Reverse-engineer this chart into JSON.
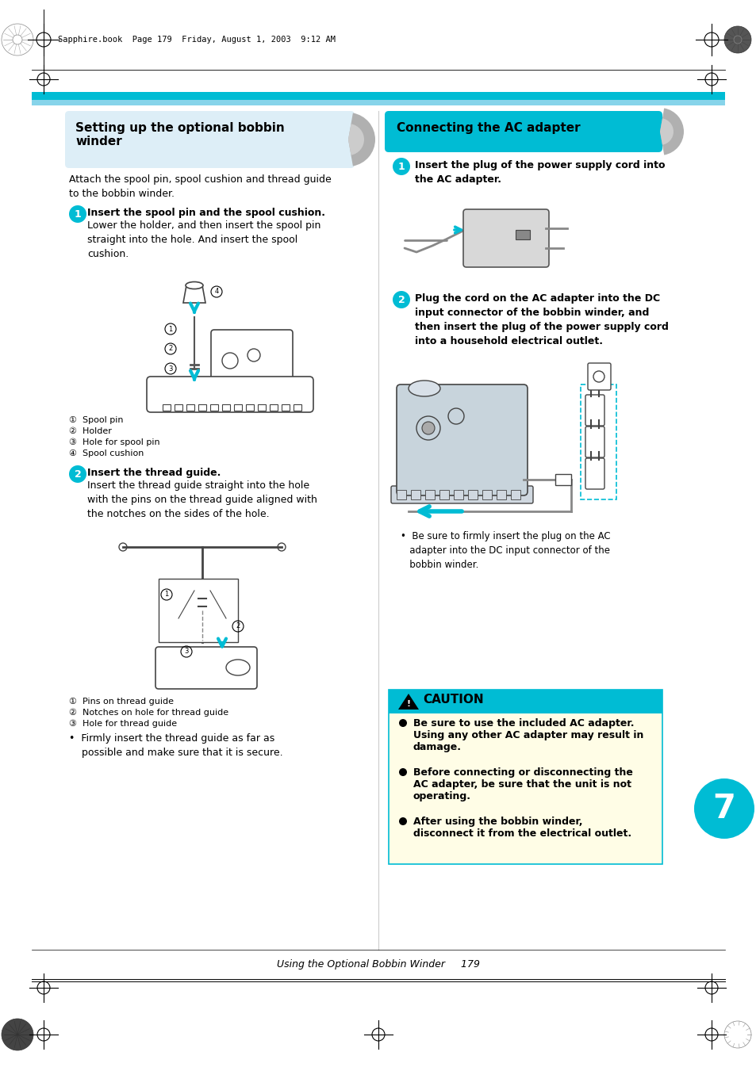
{
  "page_bg": "#ffffff",
  "cyan": "#00bcd4",
  "light_blue_box": "#ddeef7",
  "gray_swoosh": "#b8b8b8",
  "header_text": "Sapphire.book  Page 179  Friday, August 1, 2003  9:12 AM",
  "left_title_line1": "Setting up the optional bobbin",
  "left_title_line2": "winder",
  "right_title": "Connecting the AC adapter",
  "left_intro": "Attach the spool pin, spool cushion and thread guide\nto the bobbin winder.",
  "step1L_title": "Insert the spool pin and the spool cushion.",
  "step1L_body": "Lower the holder, and then insert the spool pin\nstraight into the hole. And insert the spool\ncushion.",
  "step1L_labels": [
    "①  Spool pin",
    "②  Holder",
    "③  Hole for spool pin",
    "④  Spool cushion"
  ],
  "step2L_title": "Insert the thread guide.",
  "step2L_body": "Insert the thread guide straight into the hole\nwith the pins on the thread guide aligned with\nthe notches on the sides of the hole.",
  "step2L_labels": [
    "①  Pins on thread guide",
    "②  Notches on hole for thread guide",
    "③  Hole for thread guide"
  ],
  "bullet_left": "•  Firmly insert the thread guide as far as\n    possible and make sure that it is secure.",
  "step1R_title": "Insert the plug of the power supply cord into\nthe AC adapter.",
  "step2R_title": "Plug the cord on the AC adapter into the DC\ninput connector of the bobbin winder, and\nthen insert the plug of the power supply cord\ninto a household electrical outlet.",
  "bullet_right": "•  Be sure to firmly insert the plug on the AC\n   adapter into the DC input connector of the\n   bobbin winder.",
  "caution_header": "CAUTION",
  "caution_bullets": [
    "Be sure to use the included AC adapter.\nUsing any other AC adapter may result in\ndamage.",
    "Before connecting or disconnecting the\nAC adapter, be sure that the unit is not\noperating.",
    "After using the bobbin winder,\ndisconnect it from the electrical outlet."
  ],
  "chapter_num": "7",
  "footer_text": "Using the Optional Bobbin Winder     179"
}
